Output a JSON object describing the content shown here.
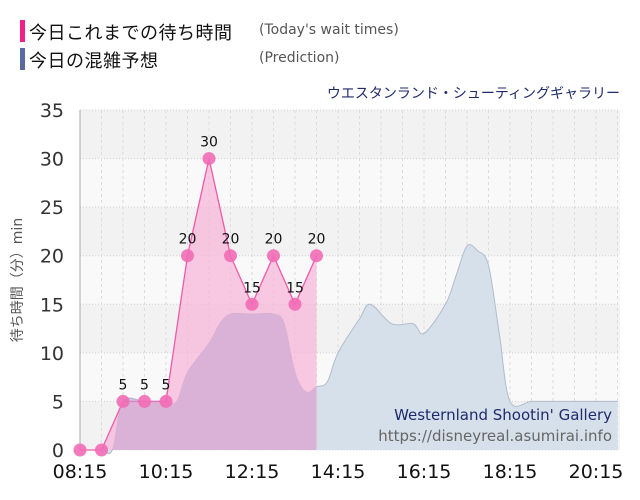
{
  "legend": {
    "items": [
      {
        "label_jp": "今日これまでの待ち時間",
        "label_en": "(Today's wait times)",
        "color": "#f0208a"
      },
      {
        "label_jp": "今日の混雑予想",
        "label_en": "(Prediction)",
        "color": "#5a6a9e"
      }
    ]
  },
  "attraction_title": "ウエスタンランド・シューティングギャラリー",
  "watermark": {
    "name": "Westernland Shootin' Gallery",
    "url": "https://disneyreal.asumirai.info"
  },
  "chart_data": {
    "type": "area",
    "title": "ウエスタンランド・シューティングギャラリー",
    "xlabel": "",
    "ylabel": "待ち時間（分）min",
    "ylim": [
      0,
      35
    ],
    "yticks": [
      0,
      5,
      10,
      15,
      20,
      25,
      30,
      35
    ],
    "xticks": [
      "08:15",
      "10:15",
      "12:15",
      "14:15",
      "16:15",
      "18:15",
      "20:15"
    ],
    "grid": true,
    "legend_position": "top-left",
    "series": [
      {
        "name": "今日これまでの待ち時間 (Today's wait times)",
        "color": "#f0208a",
        "fill": "#f7b5d8",
        "x": [
          "08:15",
          "08:45",
          "09:15",
          "09:45",
          "10:15",
          "10:45",
          "11:15",
          "11:45",
          "12:15",
          "12:45",
          "13:15",
          "13:45"
        ],
        "values": [
          0,
          0,
          5,
          5,
          5,
          20,
          30,
          20,
          15,
          20,
          15,
          20
        ],
        "data_labels": [
          "",
          "",
          "5",
          "5",
          "5",
          "20",
          "30",
          "20",
          "15",
          "20",
          "15",
          "20"
        ]
      },
      {
        "name": "今日の混雑予想 (Prediction)",
        "color": "#b9c6d6",
        "fill": "#d6e0ea",
        "x": [
          "08:15",
          "08:45",
          "09:00",
          "09:15",
          "09:45",
          "10:15",
          "10:30",
          "10:45",
          "11:15",
          "11:30",
          "11:45",
          "12:15",
          "12:45",
          "13:00",
          "13:15",
          "13:30",
          "13:45",
          "14:00",
          "14:15",
          "14:45",
          "15:00",
          "15:30",
          "16:00",
          "16:15",
          "16:45",
          "17:00",
          "17:15",
          "17:30",
          "17:45",
          "18:00",
          "18:15",
          "18:45",
          "19:15",
          "19:45",
          "20:15",
          "20:45"
        ],
        "values": [
          0,
          0,
          0,
          5,
          5,
          5,
          5,
          8,
          11,
          13,
          14,
          14,
          14,
          13,
          8,
          6,
          6.5,
          7,
          10,
          13.5,
          15,
          13,
          13,
          12,
          15,
          18,
          21,
          20.5,
          19,
          12,
          5,
          5,
          5,
          5,
          5,
          5
        ]
      }
    ]
  }
}
